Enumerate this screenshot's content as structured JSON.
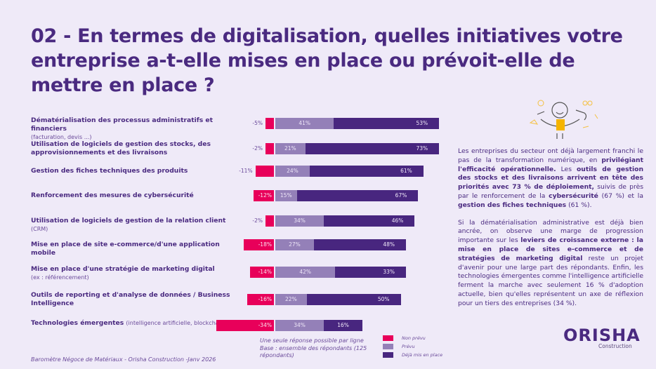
{
  "title": "02 - En termes de digitalisation, quelles initiatives votre entreprise a-t-elle mises en place ou prévoit-elle de mettre en place ?",
  "chart_data": {
    "type": "bar",
    "orientation": "horizontal-diverging-stacked",
    "categories": [
      {
        "label": "Dématérialisation des processus administratifs et financiers",
        "sub": "(facturation, devis ...)"
      },
      {
        "label": "Utilisation de logiciels de gestion des stocks, des approvisionnements et des livraisons",
        "sub": ""
      },
      {
        "label": "Gestion des fiches techniques des produits",
        "sub": ""
      },
      {
        "label": "Renforcement des mesures de cybersécurité",
        "sub": ""
      },
      {
        "label": "Utilisation de logiciels de gestion de la relation client",
        "sub": "(CRM)"
      },
      {
        "label": "Mise en place de site e-commerce/d'une application mobile",
        "sub": ""
      },
      {
        "label": "Mise en place d'une stratégie de marketing digital",
        "sub": "(ex : référencement)"
      },
      {
        "label": "Outils de reporting et d'analyse de données / Business Intelligence",
        "sub": ""
      },
      {
        "label": "Technologies émergentes",
        "sub": "(intelligence artificielle, blockchain ...)"
      }
    ],
    "series": [
      {
        "name": "Non prévu",
        "color": "#e8005a",
        "values": [
          -5,
          -2,
          -11,
          -12,
          -2,
          -18,
          -14,
          -16,
          -34
        ]
      },
      {
        "name": "Prévu",
        "color": "#9480b8",
        "values": [
          41,
          21,
          24,
          15,
          34,
          27,
          42,
          22,
          34
        ]
      },
      {
        "name": "Déjà mis en place",
        "color": "#48267f",
        "values": [
          53,
          73,
          61,
          67,
          46,
          48,
          33,
          50,
          16
        ]
      }
    ],
    "unit": "%",
    "legend": "bottom-center"
  },
  "note": [
    "Une seule réponse possible par ligne",
    "Base : ensemble des répondants (125 répondants)"
  ],
  "commentary": {
    "p1": [
      {
        "t": "Les entreprises du secteur ont déjà largement franchi le pas de la transformation numérique, en ",
        "b": false
      },
      {
        "t": "privilégiant l'efficacité opérationnelle.",
        "b": true
      },
      {
        "t": " Les ",
        "b": false
      },
      {
        "t": "outils de gestion des stocks et des livraisons arrivent en tête des priorités avec 73 % de déploiement,",
        "b": true
      },
      {
        "t": " suivis de près par le renforcement de la ",
        "b": false
      },
      {
        "t": "cybersécurité",
        "b": true
      },
      {
        "t": " (67 %) et la ",
        "b": false
      },
      {
        "t": "gestion des fiches techniques",
        "b": true
      },
      {
        "t": " (61 %).",
        "b": false
      }
    ],
    "p2": [
      {
        "t": "Si la dématérialisation administrative est déjà bien ancrée, on observe une marge de progression importante sur les ",
        "b": false
      },
      {
        "t": "leviers de croissance externe : la mise en place de sites e-commerce et de stratégies de marketing digital",
        "b": true
      },
      {
        "t": " reste un projet d'avenir pour une large part des répondants. Enfin, les technologies émergentes comme l'intelligence artificielle ferment la marche avec seulement 16 % d'adoption actuelle, bien qu'elles représentent un axe de réflexion pour un tiers des entreprises (34 %).",
        "b": false
      }
    ]
  },
  "footer": "Baromètre Négoce de Matériaux - Orisha Construction -Janv 2026",
  "logo": {
    "name": "ORISHA",
    "sub": "Construction"
  }
}
